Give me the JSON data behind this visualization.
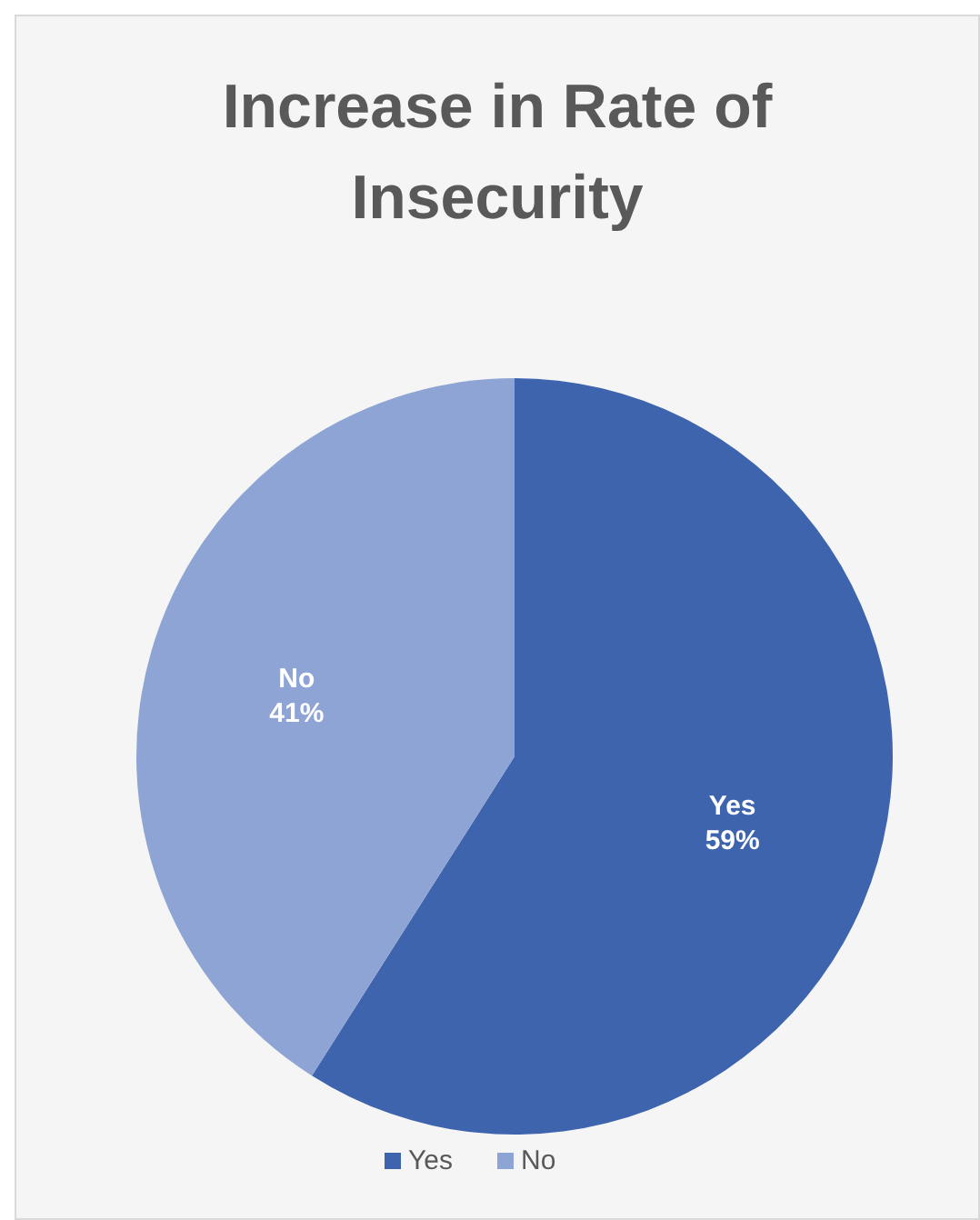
{
  "chart_data": {
    "type": "pie",
    "title": "Increase in Rate of Insecurity",
    "categories": [
      "Yes",
      "No"
    ],
    "values": [
      59,
      41
    ],
    "colors": [
      "#3e64ae",
      "#8ea4d5"
    ],
    "value_labels": [
      "59%",
      "41%"
    ],
    "legend": "bottom"
  }
}
